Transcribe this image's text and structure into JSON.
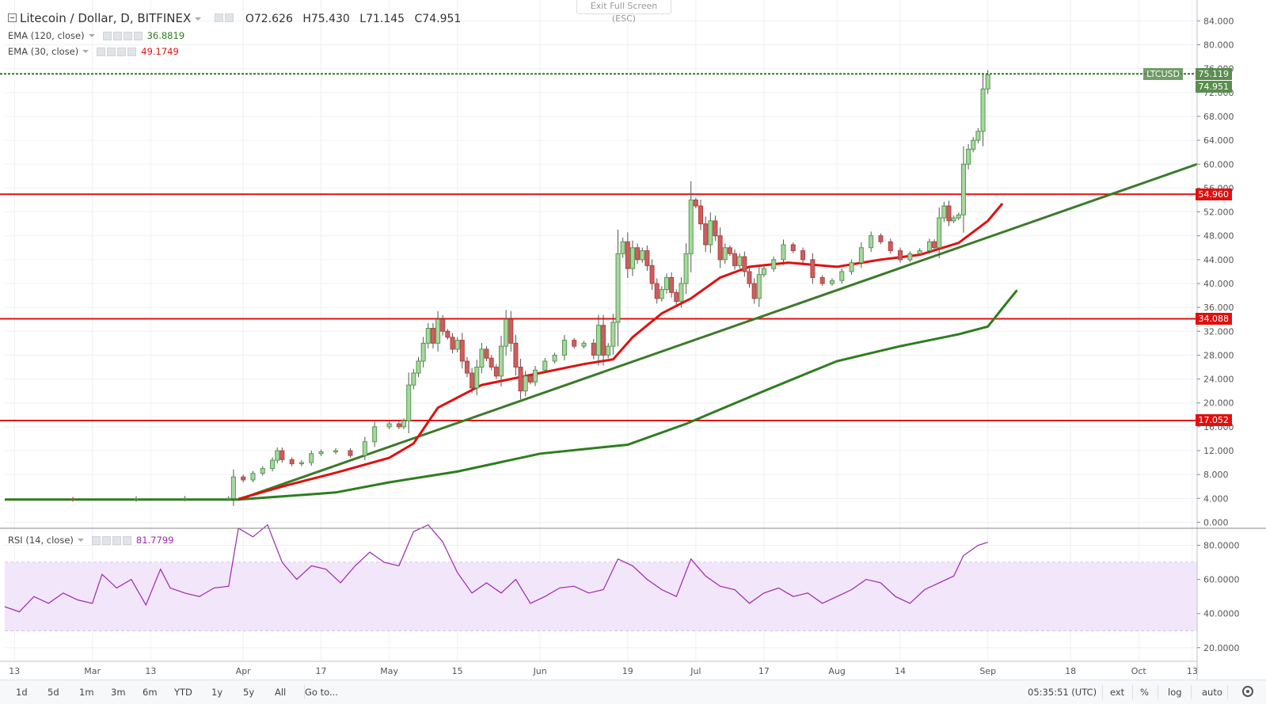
{
  "header": {
    "symbol_title": "Litecoin / Dollar, D, BITFINEX",
    "ohlc": {
      "open": "O72.626",
      "high": "H75.430",
      "low": "L71.145",
      "close": "C74.951"
    },
    "exit_fullscreen": "Exit Full Screen (ESC)"
  },
  "indicators": {
    "ema120": {
      "label": "EMA (120, close)",
      "value": "36.8819",
      "color": "#2e7d1f"
    },
    "ema30": {
      "label": "EMA (30, close)",
      "value": "49.1749",
      "color": "#e01010"
    },
    "rsi": {
      "label": "RSI (14, close)",
      "value": "81.7799",
      "color": "#9c27b0"
    }
  },
  "price_axis": {
    "ticks": [
      "84.000",
      "80.000",
      "76.000",
      "72.000",
      "68.000",
      "64.000",
      "60.000",
      "56.000",
      "52.000",
      "48.000",
      "44.000",
      "40.000",
      "36.000",
      "32.000",
      "28.000",
      "24.000",
      "20.000",
      "16.000",
      "12.000",
      "8.000",
      "4.000",
      "0.000"
    ],
    "labels": [
      {
        "id": "ltcusd",
        "tag": "LTCUSD",
        "text": "75.119",
        "color": "#5b8c51"
      },
      {
        "id": "last",
        "text": "74.951",
        "color": "#5b8c51"
      },
      {
        "id": "r1",
        "text": "54.960",
        "color": "#e01010"
      },
      {
        "id": "r2",
        "text": "34.088",
        "color": "#e01010"
      },
      {
        "id": "r3",
        "text": "17.052",
        "color": "#e01010"
      }
    ]
  },
  "rsi_axis": {
    "ticks": [
      "80.0000",
      "60.0000",
      "40.0000",
      "20.0000"
    ]
  },
  "time_axis": {
    "labels": [
      {
        "text": "13",
        "x": "2017-02-13"
      },
      {
        "text": "Mar",
        "x": "2017-03-01"
      },
      {
        "text": "13",
        "x": "2017-03-13"
      },
      {
        "text": "Apr",
        "x": "2017-04-01"
      },
      {
        "text": "17",
        "x": "2017-04-17"
      },
      {
        "text": "May",
        "x": "2017-05-01"
      },
      {
        "text": "15",
        "x": "2017-05-15"
      },
      {
        "text": "Jun",
        "x": "2017-06-01"
      },
      {
        "text": "19",
        "x": "2017-06-19"
      },
      {
        "text": "Jul",
        "x": "2017-07-03"
      },
      {
        "text": "17",
        "x": "2017-07-17"
      },
      {
        "text": "Aug",
        "x": "2017-08-01"
      },
      {
        "text": "14",
        "x": "2017-08-14"
      },
      {
        "text": "Sep",
        "x": "2017-09-01"
      },
      {
        "text": "18",
        "x": "2017-09-18"
      },
      {
        "text": "Oct",
        "x": "2017-10-02"
      },
      {
        "text": "13",
        "x": "2017-10-13"
      }
    ]
  },
  "toolbar": {
    "ranges": [
      "1d",
      "5d",
      "1m",
      "3m",
      "6m",
      "YTD",
      "1y",
      "5y",
      "All"
    ],
    "goto": "Go to...",
    "time": "05:35:51 (UTC)",
    "ext": "ext",
    "percent": "%",
    "log": "log",
    "auto": "auto"
  },
  "chart_data": {
    "type": "candlestick",
    "x_range": [
      "2017-02-11",
      "2017-10-14"
    ],
    "price_range": [
      -1,
      87.5
    ],
    "rsi_range": [
      12,
      90
    ],
    "horizontal_lines": [
      {
        "value": 75.119,
        "color": "#2e7d1f",
        "style": "dashed"
      },
      {
        "value": 54.96,
        "color": "#e01010"
      },
      {
        "value": 34.088,
        "color": "#e01010"
      },
      {
        "value": 17.052,
        "color": "#e01010"
      }
    ],
    "trend_line": {
      "from": [
        "2017-03-31",
        3.8
      ],
      "to": [
        "2017-10-14",
        60.0
      ],
      "color": "#3c7a2a"
    },
    "rsi_band": {
      "upper": 70,
      "lower": 30
    },
    "closes": [
      [
        "2017-02-11",
        3.86
      ],
      [
        "2017-02-25",
        3.85
      ],
      [
        "2017-03-10",
        3.95
      ],
      [
        "2017-03-20",
        4.0
      ],
      [
        "2017-03-29",
        4.0
      ],
      [
        "2017-03-30",
        7.6
      ],
      [
        "2017-04-01",
        7.1
      ],
      [
        "2017-04-03",
        8.2
      ],
      [
        "2017-04-05",
        9.0
      ],
      [
        "2017-04-07",
        10.4
      ],
      [
        "2017-04-08",
        12.0
      ],
      [
        "2017-04-09",
        10.5
      ],
      [
        "2017-04-11",
        9.8
      ],
      [
        "2017-04-13",
        10.0
      ],
      [
        "2017-04-15",
        11.5
      ],
      [
        "2017-04-17",
        11.8
      ],
      [
        "2017-04-20",
        12.0
      ],
      [
        "2017-04-23",
        11.2
      ],
      [
        "2017-04-26",
        13.5
      ],
      [
        "2017-04-28",
        16.0
      ],
      [
        "2017-05-01",
        16.5
      ],
      [
        "2017-05-03",
        16.0
      ],
      [
        "2017-05-04",
        17.0
      ],
      [
        "2017-05-05",
        23.0
      ],
      [
        "2017-05-06",
        25.0
      ],
      [
        "2017-05-07",
        27.0
      ],
      [
        "2017-05-08",
        30.0
      ],
      [
        "2017-05-09",
        32.5
      ],
      [
        "2017-05-10",
        30.0
      ],
      [
        "2017-05-11",
        34.0
      ],
      [
        "2017-05-12",
        32.0
      ],
      [
        "2017-05-13",
        31.0
      ],
      [
        "2017-05-14",
        29.0
      ],
      [
        "2017-05-15",
        30.5
      ],
      [
        "2017-05-16",
        27.0
      ],
      [
        "2017-05-17",
        25.0
      ],
      [
        "2017-05-18",
        22.5
      ],
      [
        "2017-05-19",
        26.0
      ],
      [
        "2017-05-20",
        29.0
      ],
      [
        "2017-05-21",
        27.5
      ],
      [
        "2017-05-22",
        26.0
      ],
      [
        "2017-05-23",
        24.5
      ],
      [
        "2017-05-24",
        29.5
      ],
      [
        "2017-05-25",
        34.0
      ],
      [
        "2017-05-26",
        30.0
      ],
      [
        "2017-05-27",
        26.0
      ],
      [
        "2017-05-28",
        22.0
      ],
      [
        "2017-05-29",
        24.5
      ],
      [
        "2017-05-30",
        23.5
      ],
      [
        "2017-05-31",
        25.5
      ],
      [
        "2017-06-02",
        27.0
      ],
      [
        "2017-06-04",
        28.0
      ],
      [
        "2017-06-06",
        30.5
      ],
      [
        "2017-06-08",
        29.5
      ],
      [
        "2017-06-10",
        30.0
      ],
      [
        "2017-06-12",
        28.0
      ],
      [
        "2017-06-13",
        33.0
      ],
      [
        "2017-06-14",
        28.0
      ],
      [
        "2017-06-15",
        29.5
      ],
      [
        "2017-06-16",
        33.5
      ],
      [
        "2017-06-17",
        45.0
      ],
      [
        "2017-06-18",
        47.0
      ],
      [
        "2017-06-19",
        42.5
      ],
      [
        "2017-06-20",
        46.0
      ],
      [
        "2017-06-21",
        44.0
      ],
      [
        "2017-06-22",
        45.5
      ],
      [
        "2017-06-23",
        43.0
      ],
      [
        "2017-06-24",
        40.0
      ],
      [
        "2017-06-25",
        37.5
      ],
      [
        "2017-06-26",
        39.0
      ],
      [
        "2017-06-27",
        41.0
      ],
      [
        "2017-06-28",
        38.5
      ],
      [
        "2017-06-29",
        37.0
      ],
      [
        "2017-06-30",
        40.0
      ],
      [
        "2017-07-01",
        45.0
      ],
      [
        "2017-07-02",
        54.0
      ],
      [
        "2017-07-03",
        53.0
      ],
      [
        "2017-07-04",
        50.0
      ],
      [
        "2017-07-05",
        46.5
      ],
      [
        "2017-07-06",
        50.5
      ],
      [
        "2017-07-07",
        48.0
      ],
      [
        "2017-07-08",
        44.0
      ],
      [
        "2017-07-09",
        46.0
      ],
      [
        "2017-07-10",
        45.0
      ],
      [
        "2017-07-11",
        43.0
      ],
      [
        "2017-07-12",
        44.5
      ],
      [
        "2017-07-13",
        42.0
      ],
      [
        "2017-07-14",
        40.0
      ],
      [
        "2017-07-15",
        37.5
      ],
      [
        "2017-07-16",
        41.5
      ],
      [
        "2017-07-17",
        42.5
      ],
      [
        "2017-07-19",
        44.0
      ],
      [
        "2017-07-21",
        46.5
      ],
      [
        "2017-07-23",
        45.5
      ],
      [
        "2017-07-25",
        44.0
      ],
      [
        "2017-07-27",
        41.0
      ],
      [
        "2017-07-29",
        40.0
      ],
      [
        "2017-07-31",
        40.5
      ],
      [
        "2017-08-02",
        42.0
      ],
      [
        "2017-08-04",
        43.5
      ],
      [
        "2017-08-06",
        46.0
      ],
      [
        "2017-08-08",
        48.0
      ],
      [
        "2017-08-10",
        47.0
      ],
      [
        "2017-08-12",
        45.5
      ],
      [
        "2017-08-14",
        44.0
      ],
      [
        "2017-08-16",
        45.0
      ],
      [
        "2017-08-18",
        45.5
      ],
      [
        "2017-08-20",
        47.0
      ],
      [
        "2017-08-21",
        46.0
      ],
      [
        "2017-08-22",
        51.0
      ],
      [
        "2017-08-23",
        53.0
      ],
      [
        "2017-08-24",
        50.5
      ],
      [
        "2017-08-25",
        51.0
      ],
      [
        "2017-08-26",
        51.5
      ],
      [
        "2017-08-27",
        60.0
      ],
      [
        "2017-08-28",
        62.5
      ],
      [
        "2017-08-29",
        64.0
      ],
      [
        "2017-08-30",
        65.5
      ],
      [
        "2017-08-31",
        72.6
      ],
      [
        "2017-09-01",
        74.951
      ]
    ],
    "ema30": [
      [
        "2017-03-31",
        3.9
      ],
      [
        "2017-04-10",
        6.2
      ],
      [
        "2017-04-20",
        8.3
      ],
      [
        "2017-05-01",
        10.8
      ],
      [
        "2017-05-06",
        13.2
      ],
      [
        "2017-05-11",
        19.2
      ],
      [
        "2017-05-20",
        23.0
      ],
      [
        "2017-06-01",
        25.0
      ],
      [
        "2017-06-10",
        26.5
      ],
      [
        "2017-06-16",
        27.3
      ],
      [
        "2017-06-20",
        31.0
      ],
      [
        "2017-06-26",
        35.0
      ],
      [
        "2017-07-02",
        37.5
      ],
      [
        "2017-07-08",
        41.0
      ],
      [
        "2017-07-14",
        42.8
      ],
      [
        "2017-07-22",
        43.5
      ],
      [
        "2017-08-01",
        42.8
      ],
      [
        "2017-08-10",
        44.0
      ],
      [
        "2017-08-18",
        44.8
      ],
      [
        "2017-08-26",
        46.8
      ],
      [
        "2017-09-01",
        50.5
      ],
      [
        "2017-09-04",
        53.4
      ]
    ],
    "ema120": [
      [
        "2017-02-11",
        3.8
      ],
      [
        "2017-03-31",
        3.8
      ],
      [
        "2017-04-20",
        5.0
      ],
      [
        "2017-05-01",
        6.7
      ],
      [
        "2017-05-15",
        8.5
      ],
      [
        "2017-06-01",
        11.5
      ],
      [
        "2017-06-19",
        13.0
      ],
      [
        "2017-07-01",
        16.5
      ],
      [
        "2017-07-17",
        22.0
      ],
      [
        "2017-08-01",
        27.0
      ],
      [
        "2017-08-14",
        29.5
      ],
      [
        "2017-08-26",
        31.5
      ],
      [
        "2017-09-01",
        32.8
      ],
      [
        "2017-09-05",
        36.9
      ],
      [
        "2017-09-07",
        38.9
      ]
    ],
    "rsi": [
      [
        "2017-02-11",
        44
      ],
      [
        "2017-02-14",
        41
      ],
      [
        "2017-02-17",
        50
      ],
      [
        "2017-02-20",
        46
      ],
      [
        "2017-02-23",
        52
      ],
      [
        "2017-02-26",
        48
      ],
      [
        "2017-03-01",
        46
      ],
      [
        "2017-03-03",
        63
      ],
      [
        "2017-03-06",
        55
      ],
      [
        "2017-03-09",
        60
      ],
      [
        "2017-03-12",
        45
      ],
      [
        "2017-03-15",
        66
      ],
      [
        "2017-03-17",
        55
      ],
      [
        "2017-03-20",
        52
      ],
      [
        "2017-03-23",
        50
      ],
      [
        "2017-03-26",
        55
      ],
      [
        "2017-03-29",
        56
      ],
      [
        "2017-03-31",
        90
      ],
      [
        "2017-04-03",
        85
      ],
      [
        "2017-04-06",
        92
      ],
      [
        "2017-04-09",
        70
      ],
      [
        "2017-04-12",
        60
      ],
      [
        "2017-04-15",
        68
      ],
      [
        "2017-04-18",
        66
      ],
      [
        "2017-04-21",
        58
      ],
      [
        "2017-04-24",
        68
      ],
      [
        "2017-04-27",
        76
      ],
      [
        "2017-04-30",
        70
      ],
      [
        "2017-05-03",
        68
      ],
      [
        "2017-05-06",
        88
      ],
      [
        "2017-05-09",
        92
      ],
      [
        "2017-05-12",
        82
      ],
      [
        "2017-05-15",
        64
      ],
      [
        "2017-05-18",
        52
      ],
      [
        "2017-05-21",
        58
      ],
      [
        "2017-05-24",
        52
      ],
      [
        "2017-05-27",
        60
      ],
      [
        "2017-05-30",
        46
      ],
      [
        "2017-06-02",
        50
      ],
      [
        "2017-06-05",
        55
      ],
      [
        "2017-06-08",
        56
      ],
      [
        "2017-06-11",
        52
      ],
      [
        "2017-06-14",
        54
      ],
      [
        "2017-06-17",
        72
      ],
      [
        "2017-06-20",
        68
      ],
      [
        "2017-06-23",
        60
      ],
      [
        "2017-06-26",
        54
      ],
      [
        "2017-06-29",
        50
      ],
      [
        "2017-07-02",
        72
      ],
      [
        "2017-07-05",
        62
      ],
      [
        "2017-07-08",
        56
      ],
      [
        "2017-07-11",
        54
      ],
      [
        "2017-07-14",
        46
      ],
      [
        "2017-07-17",
        52
      ],
      [
        "2017-07-20",
        55
      ],
      [
        "2017-07-23",
        50
      ],
      [
        "2017-07-26",
        52
      ],
      [
        "2017-07-29",
        46
      ],
      [
        "2017-08-01",
        50
      ],
      [
        "2017-08-04",
        54
      ],
      [
        "2017-08-07",
        60
      ],
      [
        "2017-08-10",
        58
      ],
      [
        "2017-08-13",
        50
      ],
      [
        "2017-08-16",
        46
      ],
      [
        "2017-08-19",
        54
      ],
      [
        "2017-08-22",
        58
      ],
      [
        "2017-08-25",
        62
      ],
      [
        "2017-08-27",
        74
      ],
      [
        "2017-08-30",
        80
      ],
      [
        "2017-09-01",
        81.78
      ]
    ]
  }
}
